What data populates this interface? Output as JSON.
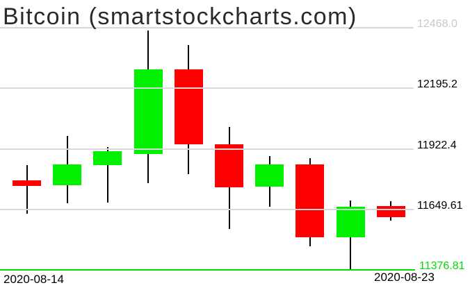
{
  "colors": {
    "bull": "#00f000",
    "bear": "#ff0000",
    "grid": "#d8d8d8",
    "muted_label": "#c8c8c8",
    "label_text": "#000000",
    "last_price": "#00dd00",
    "title_text": "#2a2a2a"
  },
  "chart_data": {
    "type": "candlestick",
    "title": "Bitcoin (smartstockcharts.com)",
    "x_tick_labels": [
      "2020-08-14",
      "2020-08-23"
    ],
    "y_axis": {
      "labels": [
        {
          "text": "12468.0",
          "value": 12468.0,
          "muted": true
        },
        {
          "text": "12195.2",
          "value": 12195.2,
          "muted": false
        },
        {
          "text": "11922.4",
          "value": 11922.4,
          "muted": false
        },
        {
          "text": "11649.61",
          "value": 11649.61,
          "muted": false
        }
      ],
      "last_price": {
        "text": "11376.81",
        "value": 11376.81
      }
    },
    "ylim": [
      11376.81,
      12468.0
    ],
    "grid": true,
    "legend": "none",
    "candles": [
      {
        "date": "2020-08-14",
        "open": 11780,
        "high": 11849,
        "low": 11630,
        "close": 11755
      },
      {
        "date": "2020-08-15",
        "open": 11758,
        "high": 11980,
        "low": 11677,
        "close": 11852
      },
      {
        "date": "2020-08-16",
        "open": 11849,
        "high": 11930,
        "low": 11680,
        "close": 11911
      },
      {
        "date": "2020-08-17",
        "open": 11899,
        "high": 12455,
        "low": 11768,
        "close": 12280
      },
      {
        "date": "2020-08-18",
        "open": 12280,
        "high": 12390,
        "low": 11808,
        "close": 11943
      },
      {
        "date": "2020-08-19",
        "open": 11943,
        "high": 12021,
        "low": 11561,
        "close": 11749
      },
      {
        "date": "2020-08-20",
        "open": 11752,
        "high": 11890,
        "low": 11661,
        "close": 11852
      },
      {
        "date": "2020-08-21",
        "open": 11852,
        "high": 11880,
        "low": 11483,
        "close": 11524
      },
      {
        "date": "2020-08-22",
        "open": 11524,
        "high": 11689,
        "low": 11377,
        "close": 11661
      },
      {
        "date": "2020-08-23",
        "open": 11664,
        "high": 11686,
        "low": 11599,
        "close": 11614
      }
    ]
  }
}
